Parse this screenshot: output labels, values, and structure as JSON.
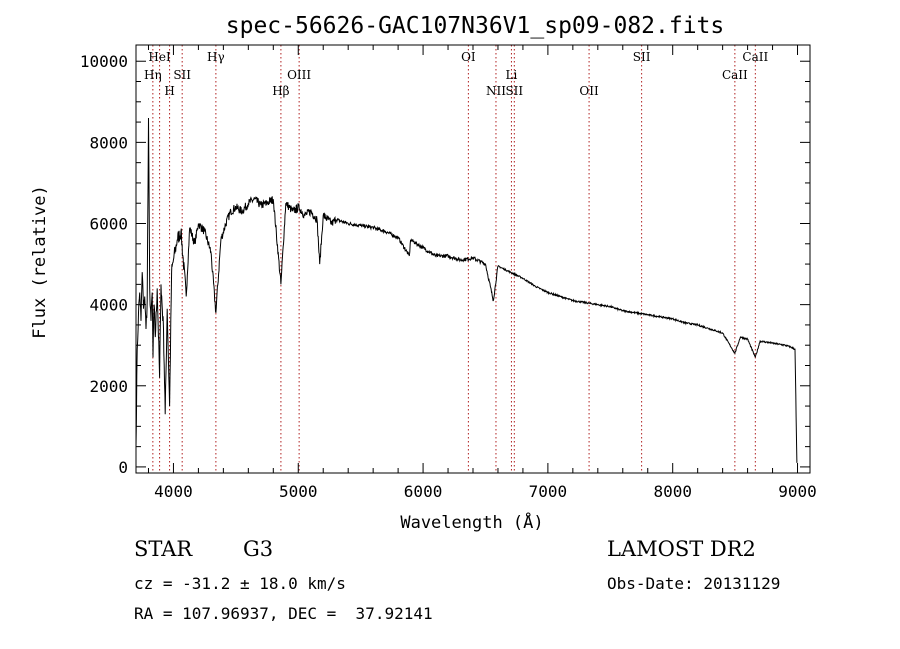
{
  "chart_data": {
    "type": "line",
    "title": "spec-56626-GAC107N36V1_sp09-082.fits",
    "xlabel": "Wavelength (Å)",
    "ylabel": "Flux (relative)",
    "xlim": [
      3700,
      9100
    ],
    "ylim": [
      -150,
      10400
    ],
    "x_ticks": [
      4000,
      5000,
      6000,
      7000,
      8000,
      9000
    ],
    "y_ticks": [
      0,
      2000,
      4000,
      6000,
      8000,
      10000
    ],
    "grid": false,
    "series": [
      {
        "x": [
          3700,
          3710,
          3720,
          3730,
          3740,
          3750,
          3760,
          3770,
          3780,
          3790,
          3800,
          3810,
          3820,
          3830,
          3836,
          3845,
          3855,
          3870,
          3889,
          3900,
          3920,
          3934,
          3950,
          3969,
          3985,
          4000,
          4030,
          4060,
          4102,
          4130,
          4170,
          4200,
          4250,
          4300,
          4340,
          4380,
          4420,
          4460,
          4500,
          4550,
          4600,
          4650,
          4700,
          4750,
          4800,
          4861,
          4900,
          4957,
          5007,
          5050,
          5100,
          5150,
          5172,
          5200,
          5270,
          5300,
          5400,
          5500,
          5600,
          5700,
          5800,
          5890,
          5900,
          6000,
          6100,
          6200,
          6300,
          6400,
          6500,
          6563,
          6600,
          6700,
          6800,
          6900,
          7000,
          7100,
          7200,
          7300,
          7400,
          7500,
          7600,
          7700,
          7800,
          7900,
          8000,
          8100,
          8200,
          8300,
          8400,
          8498,
          8542,
          8600,
          8662,
          8700,
          8800,
          8900,
          8950,
          8980,
          8995
        ],
        "y": [
          500,
          2900,
          3800,
          4300,
          3600,
          4800,
          3900,
          4200,
          3400,
          4100,
          8600,
          4400,
          3600,
          4300,
          2700,
          4000,
          3200,
          4400,
          2200,
          4500,
          3400,
          1300,
          3900,
          1500,
          4800,
          5100,
          5600,
          5800,
          4200,
          5900,
          5500,
          6000,
          5800,
          5300,
          3800,
          5600,
          6000,
          6300,
          6400,
          6300,
          6500,
          6600,
          6450,
          6500,
          6600,
          4500,
          6500,
          6300,
          6400,
          6200,
          6300,
          6100,
          5000,
          6200,
          6000,
          6100,
          6000,
          5950,
          5900,
          5800,
          5650,
          5200,
          5600,
          5400,
          5200,
          5200,
          5100,
          5150,
          5000,
          4100,
          4950,
          4800,
          4650,
          4450,
          4300,
          4200,
          4100,
          4050,
          4000,
          3950,
          3850,
          3800,
          3750,
          3700,
          3650,
          3550,
          3500,
          3400,
          3300,
          2800,
          3200,
          3150,
          2700,
          3100,
          3050,
          3000,
          2950,
          2900,
          100
        ]
      }
    ],
    "lines": [
      {
        "x": 3835,
        "label": "Hη",
        "row": 1
      },
      {
        "x": 3889,
        "label": "HeI",
        "row": 0
      },
      {
        "x": 3969,
        "label": "H",
        "row": 2
      },
      {
        "x": 4070,
        "label": "SII",
        "row": 1
      },
      {
        "x": 4340,
        "label": "Hγ",
        "row": 0
      },
      {
        "x": 4861,
        "label": "Hβ",
        "row": 2
      },
      {
        "x": 5007,
        "label": "OIII",
        "row": 1
      },
      {
        "x": 6363,
        "label": "OI",
        "row": 0
      },
      {
        "x": 6584,
        "label": "NII",
        "row": 2
      },
      {
        "x": 6708,
        "label": "Li",
        "row": 1
      },
      {
        "x": 6731,
        "label": "SII",
        "row": 2
      },
      {
        "x": 7330,
        "label": "OII",
        "row": 2
      },
      {
        "x": 7751,
        "label": "SII",
        "row": 0
      },
      {
        "x": 8498,
        "label": "CaII",
        "row": 1
      },
      {
        "x": 8662,
        "label": "CaII",
        "row": 0
      }
    ]
  },
  "info": {
    "class_label": "STAR",
    "subclass": "G3",
    "release": "LAMOST DR2",
    "cz": "cz = -31.2 ± 18.0 km/s",
    "obs_date": "Obs-Date: 20131129",
    "coords": "RA = 107.96937, DEC =  37.92141"
  },
  "colors": {
    "axis": "#000000",
    "spectrum": "#000000",
    "line_markers": "#b02020"
  }
}
